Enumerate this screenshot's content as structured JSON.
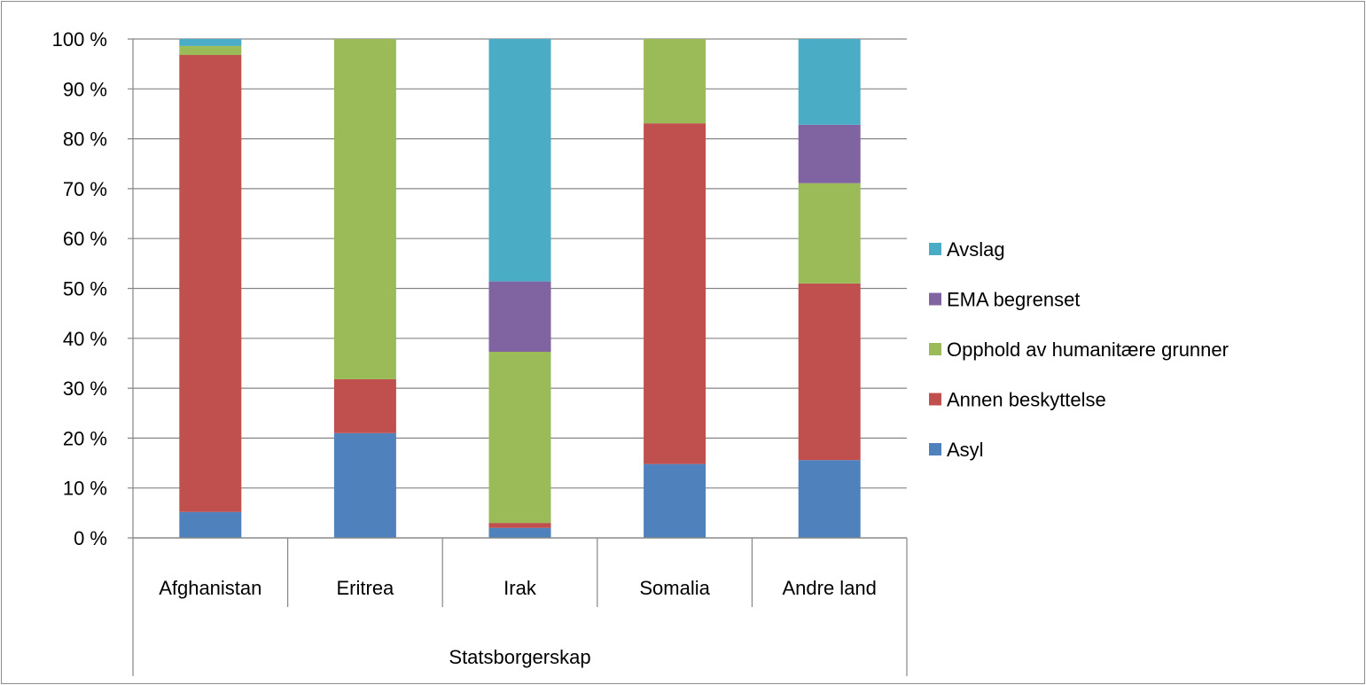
{
  "chart_data": {
    "type": "bar",
    "stacked": true,
    "categories": [
      "Afghanistan",
      "Eritrea",
      "Irak",
      "Somalia",
      "Andre land"
    ],
    "group_label": "Statsborgerskap",
    "y_ticks": [
      "0 %",
      "10 %",
      "20 %",
      "30 %",
      "40 %",
      "50 %",
      "60 %",
      "70 %",
      "80 %",
      "90 %",
      "100 %"
    ],
    "ylim": [
      0,
      100
    ],
    "grid": true,
    "legend_position": "right",
    "series": [
      {
        "name": "Asyl",
        "color": "#4f81bd",
        "values": [
          5.2,
          21.0,
          2.0,
          14.8,
          15.6
        ]
      },
      {
        "name": "Annen beskyttelse",
        "color": "#c0504d",
        "values": [
          91.6,
          10.8,
          1.0,
          68.3,
          35.4
        ]
      },
      {
        "name": "Opphold av humanitære  grunner",
        "color": "#9bbb59",
        "values": [
          1.8,
          68.2,
          34.3,
          16.9,
          20.1
        ]
      },
      {
        "name": "EMA begrenset",
        "color": "#8064a2",
        "values": [
          0.0,
          0.0,
          14.1,
          0.0,
          11.7
        ]
      },
      {
        "name": "Avslag",
        "color": "#4bacc6",
        "values": [
          1.4,
          0.0,
          48.6,
          0.0,
          17.2
        ]
      }
    ]
  }
}
